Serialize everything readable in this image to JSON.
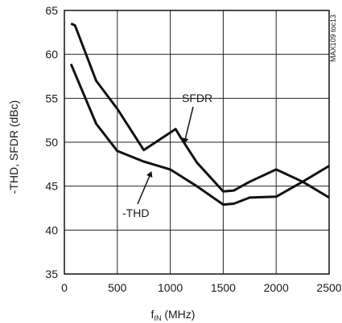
{
  "chart_data": {
    "type": "line",
    "xlabel_main": "f",
    "xlabel_sub": "IN",
    "xlabel_unit": " (MHz)",
    "ylabel": "-THD, SFDR (dBc)",
    "watermark": "MAX109 toc13",
    "xlim": [
      0,
      2500
    ],
    "ylim": [
      35,
      65
    ],
    "x_ticks": [
      0,
      500,
      1000,
      1500,
      2000,
      2500
    ],
    "y_ticks": [
      35,
      40,
      45,
      50,
      55,
      60,
      65
    ],
    "grid": true,
    "series": [
      {
        "name": "SFDR",
        "x": [
          62,
          100,
          300,
          500,
          750,
          1050,
          1100,
          1250,
          1500,
          1600,
          1750,
          2000,
          2250,
          2500
        ],
        "y": [
          63.5,
          63.3,
          57.0,
          53.8,
          49.1,
          51.5,
          50.5,
          47.7,
          44.4,
          44.5,
          45.5,
          46.9,
          45.5,
          43.7
        ]
      },
      {
        "name": "-THD",
        "x": [
          62,
          300,
          500,
          750,
          1000,
          1250,
          1500,
          1600,
          1750,
          2000,
          2250,
          2500
        ],
        "y": [
          58.9,
          52.1,
          49.0,
          47.8,
          46.9,
          45.0,
          42.9,
          43.0,
          43.7,
          43.8,
          45.5,
          47.3
        ]
      }
    ]
  }
}
